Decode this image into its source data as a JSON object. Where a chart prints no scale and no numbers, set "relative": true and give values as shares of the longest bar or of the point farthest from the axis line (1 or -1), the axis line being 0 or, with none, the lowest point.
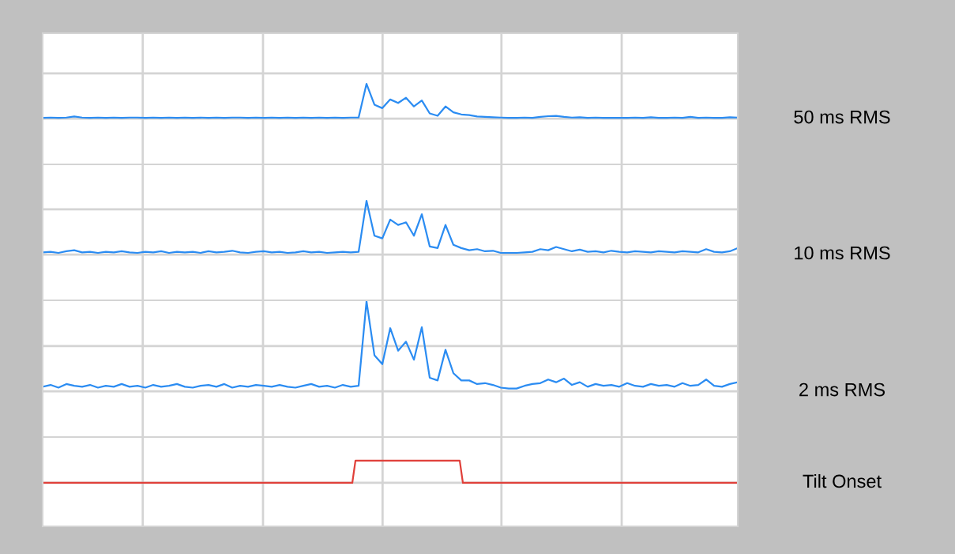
{
  "chart_data": [
    {
      "type": "line",
      "relative": true,
      "grid": true,
      "categories": [
        null,
        null,
        null,
        null,
        null,
        null,
        null,
        null,
        null,
        null,
        null,
        null,
        null,
        null,
        null,
        null,
        null,
        null,
        null,
        null,
        null,
        null,
        null,
        null,
        null,
        null,
        null,
        null,
        null,
        null,
        null,
        null,
        null,
        null,
        null,
        null,
        null,
        null,
        null,
        null,
        null,
        null,
        null,
        null,
        null,
        null,
        null,
        null,
        null,
        null,
        null,
        null,
        null,
        null,
        null,
        null,
        null,
        null,
        null,
        null,
        null,
        null,
        null,
        null,
        null,
        null,
        null,
        null,
        null,
        null,
        null,
        null,
        null,
        null,
        null,
        null,
        null,
        null,
        null,
        null,
        null,
        null,
        null,
        null,
        null,
        null,
        null,
        null,
        null
      ],
      "series": [
        {
          "name": "50 ms RMS",
          "color": "#2b8cf2",
          "values": [
            0.02,
            0.03,
            0.02,
            0.03,
            0.06,
            0.03,
            0.02,
            0.03,
            0.02,
            0.03,
            0.02,
            0.03,
            0.03,
            0.02,
            0.03,
            0.02,
            0.03,
            0.02,
            0.03,
            0.02,
            0.03,
            0.02,
            0.03,
            0.02,
            0.03,
            0.03,
            0.02,
            0.03,
            0.02,
            0.03,
            0.02,
            0.03,
            0.02,
            0.03,
            0.02,
            0.03,
            0.02,
            0.03,
            0.02,
            0.03,
            0.03,
            1.0,
            0.4,
            0.3,
            0.55,
            0.45,
            0.6,
            0.35,
            0.52,
            0.15,
            0.08,
            0.35,
            0.18,
            0.12,
            0.1,
            0.06,
            0.05,
            0.04,
            0.03,
            0.02,
            0.02,
            0.03,
            0.02,
            0.05,
            0.07,
            0.08,
            0.05,
            0.03,
            0.04,
            0.02,
            0.03,
            0.02,
            0.02,
            0.02,
            0.02,
            0.03,
            0.02,
            0.04,
            0.02,
            0.02,
            0.03,
            0.02,
            0.05,
            0.02,
            0.03,
            0.02,
            0.02,
            0.04,
            0.03
          ]
        }
      ]
    },
    {
      "type": "line",
      "relative": true,
      "grid": true,
      "categories": [
        null,
        null,
        null,
        null,
        null,
        null,
        null,
        null,
        null,
        null,
        null,
        null,
        null,
        null,
        null,
        null,
        null,
        null,
        null,
        null,
        null,
        null,
        null,
        null,
        null,
        null,
        null,
        null,
        null,
        null,
        null,
        null,
        null,
        null,
        null,
        null,
        null,
        null,
        null,
        null,
        null,
        null,
        null,
        null,
        null,
        null,
        null,
        null,
        null,
        null,
        null,
        null,
        null,
        null,
        null,
        null,
        null,
        null,
        null,
        null,
        null,
        null,
        null,
        null,
        null,
        null,
        null,
        null,
        null,
        null,
        null,
        null,
        null,
        null,
        null,
        null,
        null,
        null,
        null,
        null,
        null,
        null,
        null,
        null,
        null,
        null,
        null,
        null,
        null
      ],
      "series": [
        {
          "name": "10 ms RMS",
          "color": "#2b8cf2",
          "values": [
            0.04,
            0.05,
            0.03,
            0.06,
            0.08,
            0.04,
            0.05,
            0.03,
            0.05,
            0.04,
            0.06,
            0.04,
            0.03,
            0.05,
            0.04,
            0.06,
            0.03,
            0.05,
            0.04,
            0.05,
            0.03,
            0.06,
            0.04,
            0.05,
            0.07,
            0.04,
            0.03,
            0.05,
            0.06,
            0.04,
            0.05,
            0.03,
            0.04,
            0.06,
            0.04,
            0.05,
            0.03,
            0.04,
            0.05,
            0.04,
            0.05,
            1.0,
            0.35,
            0.3,
            0.65,
            0.55,
            0.6,
            0.35,
            0.75,
            0.15,
            0.12,
            0.55,
            0.18,
            0.12,
            0.08,
            0.1,
            0.06,
            0.07,
            0.03,
            0.03,
            0.03,
            0.04,
            0.05,
            0.1,
            0.08,
            0.14,
            0.1,
            0.06,
            0.09,
            0.05,
            0.06,
            0.04,
            0.07,
            0.05,
            0.04,
            0.06,
            0.05,
            0.04,
            0.06,
            0.05,
            0.04,
            0.06,
            0.05,
            0.04,
            0.1,
            0.05,
            0.04,
            0.06,
            0.12
          ]
        }
      ]
    },
    {
      "type": "line",
      "relative": true,
      "grid": true,
      "categories": [
        null,
        null,
        null,
        null,
        null,
        null,
        null,
        null,
        null,
        null,
        null,
        null,
        null,
        null,
        null,
        null,
        null,
        null,
        null,
        null,
        null,
        null,
        null,
        null,
        null,
        null,
        null,
        null,
        null,
        null,
        null,
        null,
        null,
        null,
        null,
        null,
        null,
        null,
        null,
        null,
        null,
        null,
        null,
        null,
        null,
        null,
        null,
        null,
        null,
        null,
        null,
        null,
        null,
        null,
        null,
        null,
        null,
        null,
        null,
        null,
        null,
        null,
        null,
        null,
        null,
        null,
        null,
        null,
        null,
        null,
        null,
        null,
        null,
        null,
        null,
        null,
        null,
        null,
        null,
        null,
        null,
        null,
        null,
        null,
        null,
        null,
        null,
        null,
        null
      ],
      "series": [
        {
          "name": "2 ms RMS",
          "color": "#2b8cf2",
          "values": [
            0.05,
            0.07,
            0.04,
            0.08,
            0.06,
            0.05,
            0.07,
            0.04,
            0.06,
            0.05,
            0.08,
            0.05,
            0.06,
            0.04,
            0.07,
            0.05,
            0.06,
            0.08,
            0.05,
            0.04,
            0.06,
            0.07,
            0.05,
            0.08,
            0.04,
            0.06,
            0.05,
            0.07,
            0.06,
            0.05,
            0.07,
            0.05,
            0.04,
            0.06,
            0.08,
            0.05,
            0.06,
            0.04,
            0.07,
            0.05,
            0.06,
            1.0,
            0.4,
            0.3,
            0.7,
            0.45,
            0.55,
            0.35,
            0.71,
            0.15,
            0.12,
            0.46,
            0.2,
            0.12,
            0.12,
            0.08,
            0.09,
            0.07,
            0.04,
            0.03,
            0.03,
            0.06,
            0.08,
            0.09,
            0.13,
            0.1,
            0.14,
            0.07,
            0.1,
            0.05,
            0.08,
            0.06,
            0.07,
            0.05,
            0.09,
            0.06,
            0.05,
            0.08,
            0.06,
            0.07,
            0.05,
            0.09,
            0.06,
            0.07,
            0.13,
            0.06,
            0.05,
            0.08,
            0.1
          ]
        }
      ]
    },
    {
      "type": "line",
      "relative": true,
      "grid": true,
      "categories": [
        null,
        null,
        null,
        null,
        null,
        null,
        null,
        null,
        null,
        null,
        null,
        null,
        null,
        null,
        null,
        null,
        null,
        null,
        null,
        null,
        null,
        null,
        null,
        null,
        null,
        null,
        null,
        null,
        null,
        null,
        null,
        null,
        null,
        null,
        null,
        null,
        null,
        null,
        null,
        null,
        null,
        null,
        null,
        null,
        null,
        null,
        null,
        null,
        null,
        null,
        null,
        null,
        null,
        null,
        null,
        null,
        null,
        null,
        null,
        null,
        null,
        null,
        null,
        null,
        null,
        null,
        null,
        null,
        null,
        null,
        null,
        null,
        null,
        null,
        null,
        null,
        null,
        null,
        null,
        null,
        null,
        null,
        null,
        null,
        null,
        null,
        null,
        null,
        null,
        null,
        null,
        null,
        null,
        null,
        null,
        null,
        null,
        null,
        null,
        null,
        null,
        null,
        null,
        null,
        null,
        null,
        null,
        null,
        null,
        null,
        null,
        null,
        null,
        null,
        null,
        null,
        null,
        null,
        null,
        null,
        null,
        null,
        null,
        null,
        null,
        null,
        null,
        null,
        null,
        null,
        null,
        null,
        null,
        null,
        null,
        null,
        null,
        null,
        null,
        null,
        null,
        null,
        null,
        null,
        null,
        null,
        null,
        null,
        null,
        null,
        null,
        null,
        null,
        null,
        null,
        null,
        null,
        null,
        null,
        null,
        null,
        null,
        null,
        null,
        null,
        null,
        null,
        null,
        null,
        null,
        null,
        null,
        null,
        null,
        null,
        null,
        null,
        null,
        null,
        null,
        null,
        null,
        null,
        null,
        null,
        null,
        null,
        null,
        null,
        null,
        null,
        null,
        null,
        null,
        null,
        null,
        null,
        null,
        null,
        null,
        null,
        null,
        null,
        null,
        null,
        null,
        null,
        null,
        null,
        null,
        null,
        null,
        null,
        null,
        null,
        null,
        null,
        null,
        null,
        null,
        null
      ],
      "series": [
        {
          "name": "Tilt Onset",
          "color": "#e0403a",
          "values": [
            0,
            0,
            0,
            0,
            0,
            0,
            0,
            0,
            0,
            0,
            0,
            0,
            0,
            0,
            0,
            0,
            0,
            0,
            0,
            0,
            0,
            0,
            0,
            0,
            0,
            0,
            0,
            0,
            0,
            0,
            0,
            0,
            0,
            0,
            0,
            0,
            0,
            0,
            0,
            0,
            0,
            0,
            0,
            0,
            0,
            0,
            0,
            0,
            0,
            0,
            0,
            0,
            0,
            0,
            0,
            0,
            0,
            0,
            0,
            0,
            0,
            0,
            0,
            0,
            0,
            0,
            0,
            0,
            0,
            0,
            0,
            0,
            0,
            0,
            0,
            0,
            0,
            0,
            0,
            0,
            0,
            0,
            0,
            0,
            0,
            0,
            0,
            0,
            0,
            0,
            0,
            0,
            0,
            0,
            0,
            0,
            0,
            0,
            0,
            1,
            1,
            1,
            1,
            1,
            1,
            1,
            1,
            1,
            1,
            1,
            1,
            1,
            1,
            1,
            1,
            1,
            1,
            1,
            1,
            1,
            1,
            1,
            1,
            1,
            1,
            1,
            1,
            1,
            1,
            1,
            1,
            1,
            1,
            0,
            0,
            0,
            0,
            0,
            0,
            0,
            0,
            0,
            0,
            0,
            0,
            0,
            0,
            0,
            0,
            0,
            0,
            0,
            0,
            0,
            0,
            0,
            0,
            0,
            0,
            0,
            0,
            0,
            0,
            0,
            0,
            0,
            0,
            0,
            0,
            0,
            0,
            0,
            0,
            0,
            0,
            0,
            0,
            0,
            0,
            0,
            0,
            0,
            0,
            0,
            0,
            0,
            0,
            0,
            0,
            0,
            0,
            0,
            0,
            0,
            0,
            0,
            0,
            0,
            0,
            0,
            0,
            0,
            0,
            0,
            0,
            0,
            0,
            0,
            0,
            0,
            0,
            0,
            0,
            0,
            0,
            0,
            0,
            0,
            0,
            0,
            0
          ]
        }
      ]
    }
  ]
}
